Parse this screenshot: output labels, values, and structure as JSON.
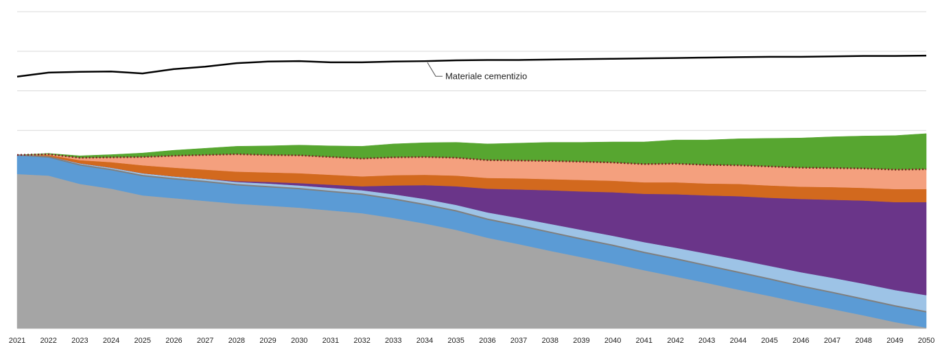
{
  "chart_data": {
    "type": "area",
    "categories": [
      "2021",
      "2022",
      "2023",
      "2024",
      "2025",
      "2026",
      "2027",
      "2028",
      "2029",
      "2030",
      "2031",
      "2032",
      "2033",
      "2034",
      "2035",
      "2036",
      "2037",
      "2038",
      "2039",
      "2040",
      "2041",
      "2042",
      "2043",
      "2044",
      "2045",
      "2046",
      "2047",
      "2048",
      "2049",
      "2050"
    ],
    "ylim": [
      0,
      8
    ],
    "yticks": [
      0,
      1,
      2,
      3,
      4,
      5,
      6,
      7,
      8
    ],
    "grid": true,
    "series": [
      {
        "color": "#a5a5a5",
        "values": [
          3.9,
          3.86,
          3.65,
          3.53,
          3.36,
          3.29,
          3.22,
          3.15,
          3.1,
          3.05,
          2.98,
          2.91,
          2.79,
          2.65,
          2.49,
          2.29,
          2.13,
          1.96,
          1.8,
          1.64,
          1.47,
          1.31,
          1.15,
          0.98,
          0.82,
          0.65,
          0.49,
          0.33,
          0.16,
          0.02
        ]
      },
      {
        "color": "#5b9bd5",
        "edge": "#7f7f7f",
        "values": [
          0.48,
          0.47,
          0.48,
          0.48,
          0.5,
          0.49,
          0.49,
          0.48,
          0.48,
          0.48,
          0.48,
          0.48,
          0.48,
          0.48,
          0.48,
          0.47,
          0.47,
          0.47,
          0.46,
          0.46,
          0.45,
          0.45,
          0.44,
          0.44,
          0.43,
          0.42,
          0.42,
          0.41,
          0.41,
          0.4
        ]
      },
      {
        "color": "#9dc3e6",
        "values": [
          0,
          0.02,
          0.04,
          0.05,
          0.06,
          0.06,
          0.07,
          0.07,
          0.08,
          0.08,
          0.09,
          0.1,
          0.12,
          0.14,
          0.15,
          0.17,
          0.19,
          0.21,
          0.23,
          0.24,
          0.26,
          0.28,
          0.3,
          0.32,
          0.33,
          0.35,
          0.37,
          0.39,
          0.4,
          0.42
        ]
      },
      {
        "color": "#6a3589",
        "values": [
          0,
          0,
          0,
          0,
          0,
          0,
          0,
          0.02,
          0.04,
          0.06,
          0.08,
          0.1,
          0.22,
          0.35,
          0.47,
          0.6,
          0.72,
          0.85,
          0.97,
          1.1,
          1.22,
          1.35,
          1.47,
          1.6,
          1.72,
          1.85,
          1.97,
          2.1,
          2.22,
          2.35
        ]
      },
      {
        "color": "#d2691e",
        "values": [
          0,
          0.03,
          0.08,
          0.14,
          0.2,
          0.22,
          0.23,
          0.24,
          0.24,
          0.25,
          0.25,
          0.25,
          0.26,
          0.26,
          0.27,
          0.27,
          0.28,
          0.28,
          0.29,
          0.29,
          0.29,
          0.3,
          0.3,
          0.31,
          0.31,
          0.31,
          0.32,
          0.32,
          0.33,
          0.33
        ]
      },
      {
        "color": "#f4a07e",
        "edge": "#7a1f1f",
        "dotted": true,
        "values": [
          0,
          0.02,
          0.06,
          0.12,
          0.21,
          0.3,
          0.37,
          0.44,
          0.44,
          0.45,
          0.45,
          0.45,
          0.45,
          0.45,
          0.45,
          0.45,
          0.45,
          0.46,
          0.46,
          0.46,
          0.46,
          0.47,
          0.47,
          0.47,
          0.48,
          0.48,
          0.48,
          0.49,
          0.49,
          0.5
        ]
      },
      {
        "color": "#57a630",
        "values": [
          0,
          0.02,
          0.05,
          0.07,
          0.1,
          0.14,
          0.17,
          0.2,
          0.23,
          0.26,
          0.28,
          0.31,
          0.34,
          0.36,
          0.39,
          0.41,
          0.44,
          0.47,
          0.49,
          0.52,
          0.56,
          0.6,
          0.63,
          0.67,
          0.71,
          0.75,
          0.79,
          0.82,
          0.86,
          0.9
        ]
      },
      {
        "name": "Materiale cementizio",
        "type": "line",
        "color": "#000000",
        "values": [
          6.36,
          6.46,
          6.48,
          6.49,
          6.44,
          6.55,
          6.61,
          6.7,
          6.74,
          6.75,
          6.72,
          6.72,
          6.74,
          6.75,
          6.77,
          6.78,
          6.78,
          6.79,
          6.8,
          6.81,
          6.82,
          6.83,
          6.84,
          6.85,
          6.86,
          6.86,
          6.87,
          6.88,
          6.88,
          6.89
        ]
      }
    ]
  }
}
